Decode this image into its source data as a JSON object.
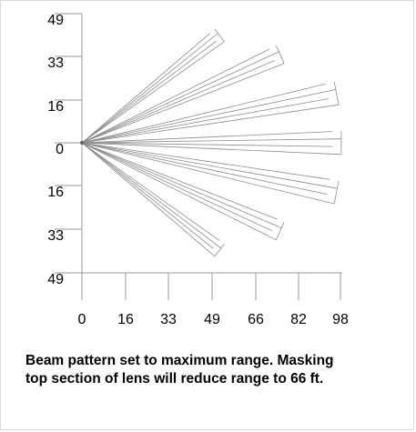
{
  "diagram": {
    "y_tick_labels": [
      "49",
      "33",
      "16",
      "0",
      "16",
      "33",
      "49"
    ],
    "x_tick_labels": [
      "0",
      "16",
      "33",
      "49",
      "66",
      "82",
      "98"
    ],
    "beams": [
      {
        "angle_deg": 38,
        "range": 66,
        "lines": 4
      },
      {
        "angle_deg": 24,
        "range": 82,
        "lines": 4
      },
      {
        "angle_deg": 11,
        "range": 98,
        "lines": 4
      },
      {
        "angle_deg": 0,
        "range": 98,
        "lines": 4
      },
      {
        "angle_deg": -11,
        "range": 98,
        "lines": 4
      },
      {
        "angle_deg": -24,
        "range": 82,
        "lines": 4
      },
      {
        "angle_deg": -38,
        "range": 66,
        "lines": 4
      }
    ],
    "axis_color": "#9a9a9a",
    "beam_color": "#8c8c8c"
  },
  "caption": {
    "line1": "Beam pattern set to maximum range.  Masking",
    "line2": "top section of lens will reduce range to 66 ft."
  }
}
